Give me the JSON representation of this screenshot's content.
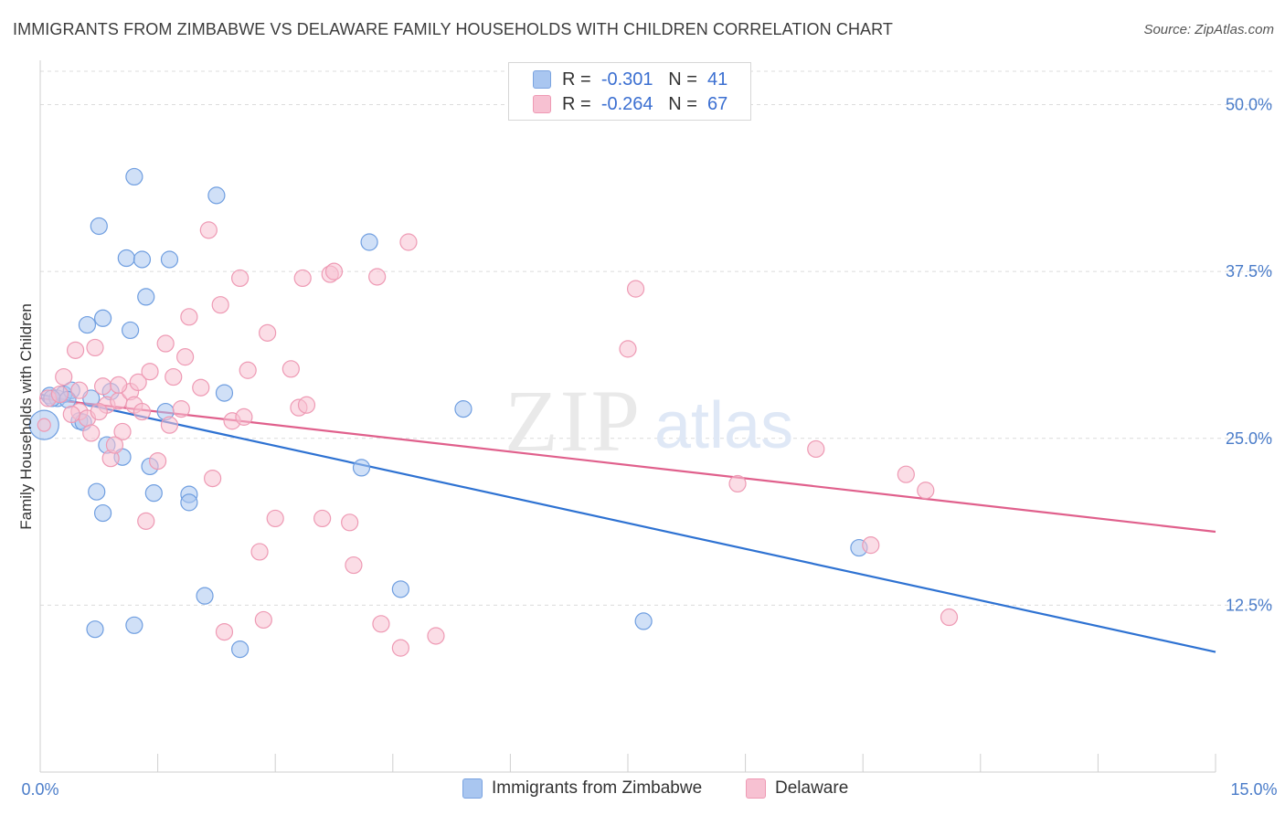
{
  "title": "IMMIGRANTS FROM ZIMBABWE VS DELAWARE FAMILY HOUSEHOLDS WITH CHILDREN CORRELATION CHART",
  "source": "Source: ZipAtlas.com",
  "watermark": {
    "zip": "ZIP",
    "atlas": "atlas"
  },
  "legend": {
    "rows": [
      {
        "r_label": "R =",
        "r_value": "-0.301",
        "n_label": "N =",
        "n_value": "41",
        "color": "#a9c6f0",
        "border": "#7aa3e0"
      },
      {
        "r_label": "R =",
        "r_value": "-0.264",
        "n_label": "N =",
        "n_value": "67",
        "color": "#f7c1d2",
        "border": "#ee9ab4"
      }
    ]
  },
  "bottom_legend": {
    "series1": "Immigrants from Zimbabwe",
    "series2": "Delaware"
  },
  "chart_data": {
    "type": "scatter",
    "title": "IMMIGRANTS FROM ZIMBABWE VS DELAWARE FAMILY HOUSEHOLDS WITH CHILDREN CORRELATION CHART",
    "xlabel": "",
    "ylabel": "Family Households with Children",
    "xlim": [
      0,
      15
    ],
    "ylim": [
      0,
      52.5
    ],
    "x_tick_labels": [
      "0.0%",
      "15.0%"
    ],
    "y_ticks": [
      12.5,
      25.0,
      37.5,
      50.0
    ],
    "y_tick_labels": [
      "12.5%",
      "25.0%",
      "37.5%",
      "50.0%"
    ],
    "grid": true,
    "series": [
      {
        "name": "Immigrants from Zimbabwe",
        "color": "#a9c6f0",
        "stroke": "#6f9ee0",
        "line_color": "#2e72d2",
        "trend": {
          "x": [
            0,
            15
          ],
          "y": [
            28.3,
            9.0
          ]
        },
        "points": [
          [
            0.05,
            26.0
          ],
          [
            0.12,
            28.2
          ],
          [
            0.22,
            28.0
          ],
          [
            0.3,
            28.3
          ],
          [
            0.4,
            28.6
          ],
          [
            0.5,
            26.3
          ],
          [
            0.65,
            28.0
          ],
          [
            0.75,
            40.9
          ],
          [
            0.9,
            28.5
          ],
          [
            0.6,
            33.5
          ],
          [
            0.8,
            34.0
          ],
          [
            1.15,
            33.1
          ],
          [
            1.1,
            38.5
          ],
          [
            1.2,
            44.6
          ],
          [
            1.3,
            38.4
          ],
          [
            1.35,
            35.6
          ],
          [
            1.65,
            38.4
          ],
          [
            2.25,
            43.2
          ],
          [
            0.72,
            21.0
          ],
          [
            0.85,
            24.5
          ],
          [
            1.05,
            23.6
          ],
          [
            1.4,
            22.9
          ],
          [
            1.45,
            20.9
          ],
          [
            0.8,
            19.4
          ],
          [
            1.6,
            27.0
          ],
          [
            1.9,
            20.8
          ],
          [
            1.9,
            20.2
          ],
          [
            2.35,
            28.4
          ],
          [
            2.1,
            13.2
          ],
          [
            1.2,
            11.0
          ],
          [
            0.7,
            10.7
          ],
          [
            2.55,
            9.2
          ],
          [
            4.1,
            22.8
          ],
          [
            4.2,
            39.7
          ],
          [
            4.6,
            13.7
          ],
          [
            5.4,
            27.2
          ],
          [
            7.7,
            11.3
          ],
          [
            10.45,
            16.8
          ],
          [
            0.55,
            26.2
          ],
          [
            0.15,
            28.0
          ],
          [
            0.35,
            27.9
          ]
        ],
        "sizes": {
          "0": 32
        }
      },
      {
        "name": "Delaware",
        "color": "#f7c1d2",
        "stroke": "#ee9ab4",
        "line_color": "#e0608c",
        "trend": {
          "x": [
            0,
            15
          ],
          "y": [
            28.0,
            18.0
          ]
        },
        "points": [
          [
            0.05,
            26.0
          ],
          [
            0.1,
            28.0
          ],
          [
            0.25,
            28.3
          ],
          [
            0.3,
            29.6
          ],
          [
            0.45,
            31.6
          ],
          [
            0.5,
            27.0
          ],
          [
            0.6,
            26.5
          ],
          [
            0.65,
            25.4
          ],
          [
            0.7,
            31.8
          ],
          [
            0.8,
            28.9
          ],
          [
            0.85,
            27.5
          ],
          [
            0.9,
            23.5
          ],
          [
            1.0,
            27.8
          ],
          [
            1.05,
            25.5
          ],
          [
            1.15,
            28.5
          ],
          [
            1.2,
            27.5
          ],
          [
            1.25,
            29.2
          ],
          [
            1.35,
            18.8
          ],
          [
            1.4,
            30.0
          ],
          [
            1.5,
            23.3
          ],
          [
            1.6,
            32.1
          ],
          [
            1.65,
            26.0
          ],
          [
            1.7,
            29.6
          ],
          [
            1.8,
            27.2
          ],
          [
            1.9,
            34.1
          ],
          [
            1.85,
            31.1
          ],
          [
            2.05,
            28.8
          ],
          [
            2.15,
            40.6
          ],
          [
            2.2,
            22.0
          ],
          [
            2.3,
            35.0
          ],
          [
            2.35,
            10.5
          ],
          [
            2.45,
            26.3
          ],
          [
            2.55,
            37.0
          ],
          [
            2.6,
            26.6
          ],
          [
            2.65,
            30.1
          ],
          [
            2.8,
            16.5
          ],
          [
            2.85,
            11.4
          ],
          [
            2.9,
            32.9
          ],
          [
            3.0,
            19.0
          ],
          [
            3.2,
            30.2
          ],
          [
            3.3,
            27.3
          ],
          [
            3.35,
            37.0
          ],
          [
            3.4,
            27.5
          ],
          [
            3.6,
            19.0
          ],
          [
            3.7,
            37.3
          ],
          [
            3.75,
            37.5
          ],
          [
            3.95,
            18.7
          ],
          [
            4.0,
            15.5
          ],
          [
            4.3,
            37.1
          ],
          [
            4.35,
            11.1
          ],
          [
            4.6,
            9.3
          ],
          [
            4.7,
            39.7
          ],
          [
            5.05,
            10.2
          ],
          [
            7.5,
            31.7
          ],
          [
            7.6,
            36.2
          ],
          [
            8.9,
            21.6
          ],
          [
            9.9,
            24.2
          ],
          [
            10.6,
            17.0
          ],
          [
            11.05,
            22.3
          ],
          [
            11.3,
            21.1
          ],
          [
            11.6,
            11.6
          ],
          [
            0.5,
            28.6
          ],
          [
            0.75,
            27.0
          ],
          [
            1.0,
            29.0
          ],
          [
            0.4,
            26.8
          ],
          [
            0.95,
            24.5
          ],
          [
            1.3,
            27.0
          ]
        ],
        "sizes": {
          "0": 14
        }
      }
    ]
  }
}
